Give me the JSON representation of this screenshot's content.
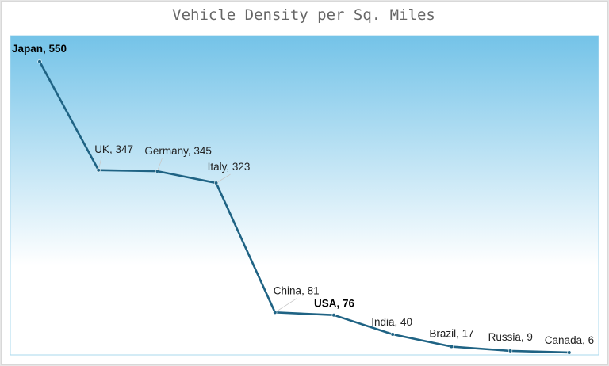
{
  "chart_data": {
    "type": "line",
    "title": "Vehicle Density per Sq. Miles",
    "categories": [
      "Japan",
      "UK",
      "Germany",
      "Italy",
      "China",
      "USA",
      "India",
      "Brazil",
      "Russia",
      "Canada"
    ],
    "values": [
      550,
      347,
      345,
      323,
      81,
      76,
      40,
      17,
      9,
      6
    ],
    "bold_labels": [
      "Japan",
      "USA"
    ],
    "data_labels": [
      "Japan, 550",
      "UK, 347",
      "Germany, 345",
      "Italy, 323",
      "China, 81",
      "USA, 76",
      "India, 40",
      "Brazil, 17",
      "Russia, 9",
      "Canada, 6"
    ],
    "xlabel": "",
    "ylabel": "",
    "ylim": [
      0,
      560
    ],
    "grid": false,
    "axes_visible": false,
    "legend": "none",
    "colors": {
      "line": "#1f6384",
      "background_top": "#74c3e8",
      "background_bottom": "#ffffff",
      "plot_border": "#a8d8ee"
    }
  }
}
